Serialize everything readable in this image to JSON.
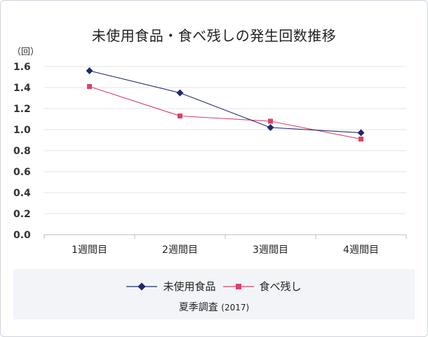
{
  "chart_data": {
    "type": "line",
    "title": "未使用食品・食べ残しの発生回数推移",
    "ylabel": "（回）",
    "categories": [
      "1週間目",
      "2週間目",
      "3週間目",
      "4週間目"
    ],
    "ylim": [
      0,
      1.6
    ],
    "yticks": [
      "0.0",
      "0.2",
      "0.4",
      "0.6",
      "0.8",
      "1.0",
      "1.2",
      "1.4",
      "1.6"
    ],
    "grid": true,
    "legend_position": "bottom",
    "series": [
      {
        "name": "未使用食品",
        "values": [
          1.56,
          1.35,
          1.02,
          0.97
        ],
        "color": "#1f2a6b",
        "marker": "diamond"
      },
      {
        "name": "食べ残し",
        "values": [
          1.41,
          1.13,
          1.08,
          0.91
        ],
        "color": "#d9436a",
        "marker": "square"
      }
    ],
    "source": {
      "label": "夏季調査",
      "year": "(2017)"
    }
  }
}
